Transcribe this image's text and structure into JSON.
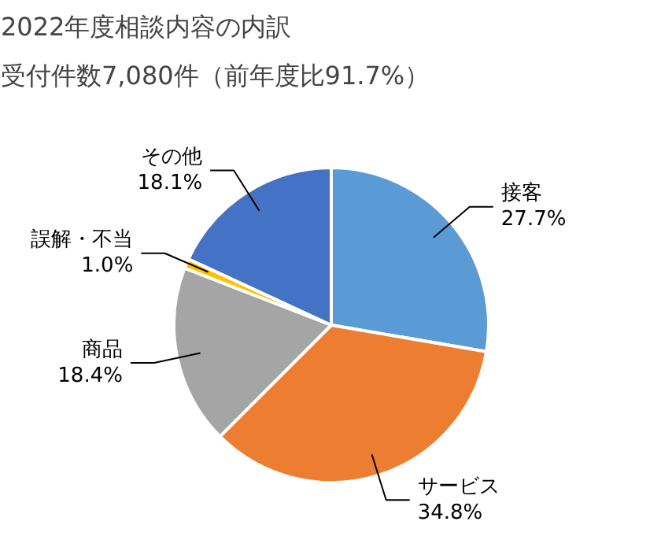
{
  "chart_data": {
    "type": "pie",
    "title": "2022年度相談内容の内訳",
    "subtitle": "受付件数7,080件（前年度比91.7%）",
    "categories": [
      "接客",
      "サービス",
      "商品",
      "誤解・不当",
      "その他"
    ],
    "values": [
      27.7,
      34.8,
      18.4,
      1.0,
      18.1
    ],
    "value_labels": [
      "27.7%",
      "34.8%",
      "18.4%",
      "1.0%",
      "18.1%"
    ],
    "colors": [
      "#5b9bd5",
      "#ed7d31",
      "#a5a5a5",
      "#ffc000",
      "#4472c4"
    ]
  }
}
